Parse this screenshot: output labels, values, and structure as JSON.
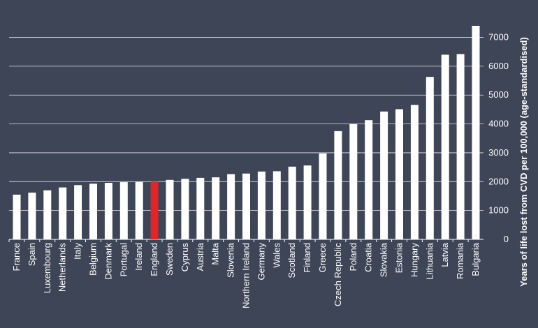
{
  "chart_data": {
    "type": "bar",
    "title": "",
    "xlabel": "",
    "ylabel": "Years of life lost from CVD per 100,000 (age-standardised)",
    "ylim": [
      0,
      7400
    ],
    "yticks": [
      0,
      1000,
      2000,
      3000,
      4000,
      5000,
      6000,
      7000
    ],
    "ytick_labels": [
      "0",
      "1000",
      "2000",
      "3000",
      "4000",
      "5000",
      "6000",
      "7000"
    ],
    "y_axis_position": "right",
    "grid": true,
    "legend": "none",
    "categories": [
      "France",
      "Spain",
      "Luxembourg",
      "Netherlands",
      "Italy",
      "Belgium",
      "Denmark",
      "Portugal",
      "Ireland",
      "England",
      "Sweden",
      "Cyprus",
      "Austria",
      "Malta",
      "Slovenia",
      "Northern Ireland",
      "Germany",
      "Wales",
      "Scotland",
      "Finland",
      "Greece",
      "Czech Republic",
      "Poland",
      "Croatia",
      "Slovakia",
      "Estonia",
      "Hungary",
      "Lithuania",
      "Latvia",
      "Romania",
      "Bulgaria"
    ],
    "values": [
      1550,
      1620,
      1700,
      1800,
      1880,
      1930,
      1960,
      1980,
      1990,
      2000,
      2060,
      2100,
      2130,
      2150,
      2260,
      2280,
      2350,
      2360,
      2520,
      2560,
      2980,
      3750,
      4000,
      4130,
      4430,
      4510,
      4660,
      5630,
      6400,
      6420,
      7400
    ],
    "highlight_category": "England",
    "colors": {
      "background": "#3d4556",
      "bar": "#ffffff",
      "highlight_bar": "#e0252b",
      "grid": "#ffffff",
      "text": "#ffffff"
    }
  }
}
